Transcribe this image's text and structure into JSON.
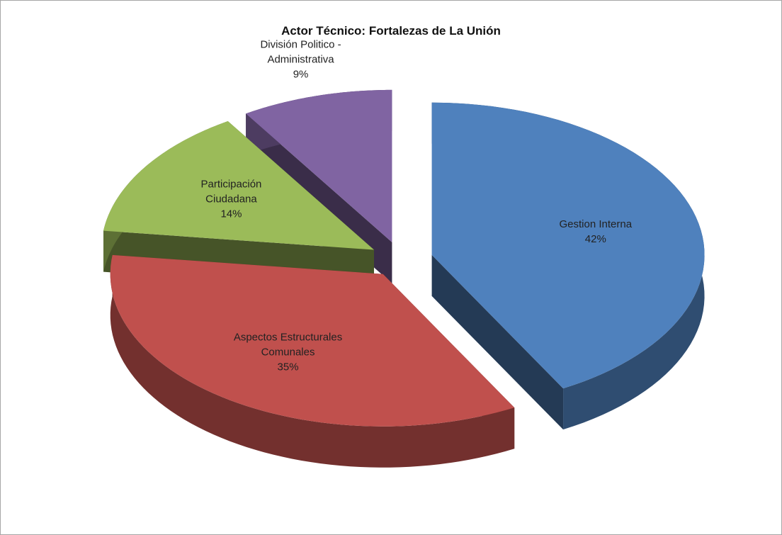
{
  "chart_data": {
    "type": "pie3d",
    "title": "Actor Técnico: Fortalezas de La Unión",
    "categories": [
      "Gestion Interna",
      "Aspectos Estructurales Comunales",
      "Participación Ciudadana",
      "División Politico - Administrativa"
    ],
    "values": [
      42,
      35,
      14,
      9
    ],
    "value_labels": [
      "42%",
      "35%",
      "14%",
      "9%"
    ],
    "colors": [
      "#4f81bd",
      "#c0504d",
      "#9bbb59",
      "#8064a2"
    ]
  }
}
